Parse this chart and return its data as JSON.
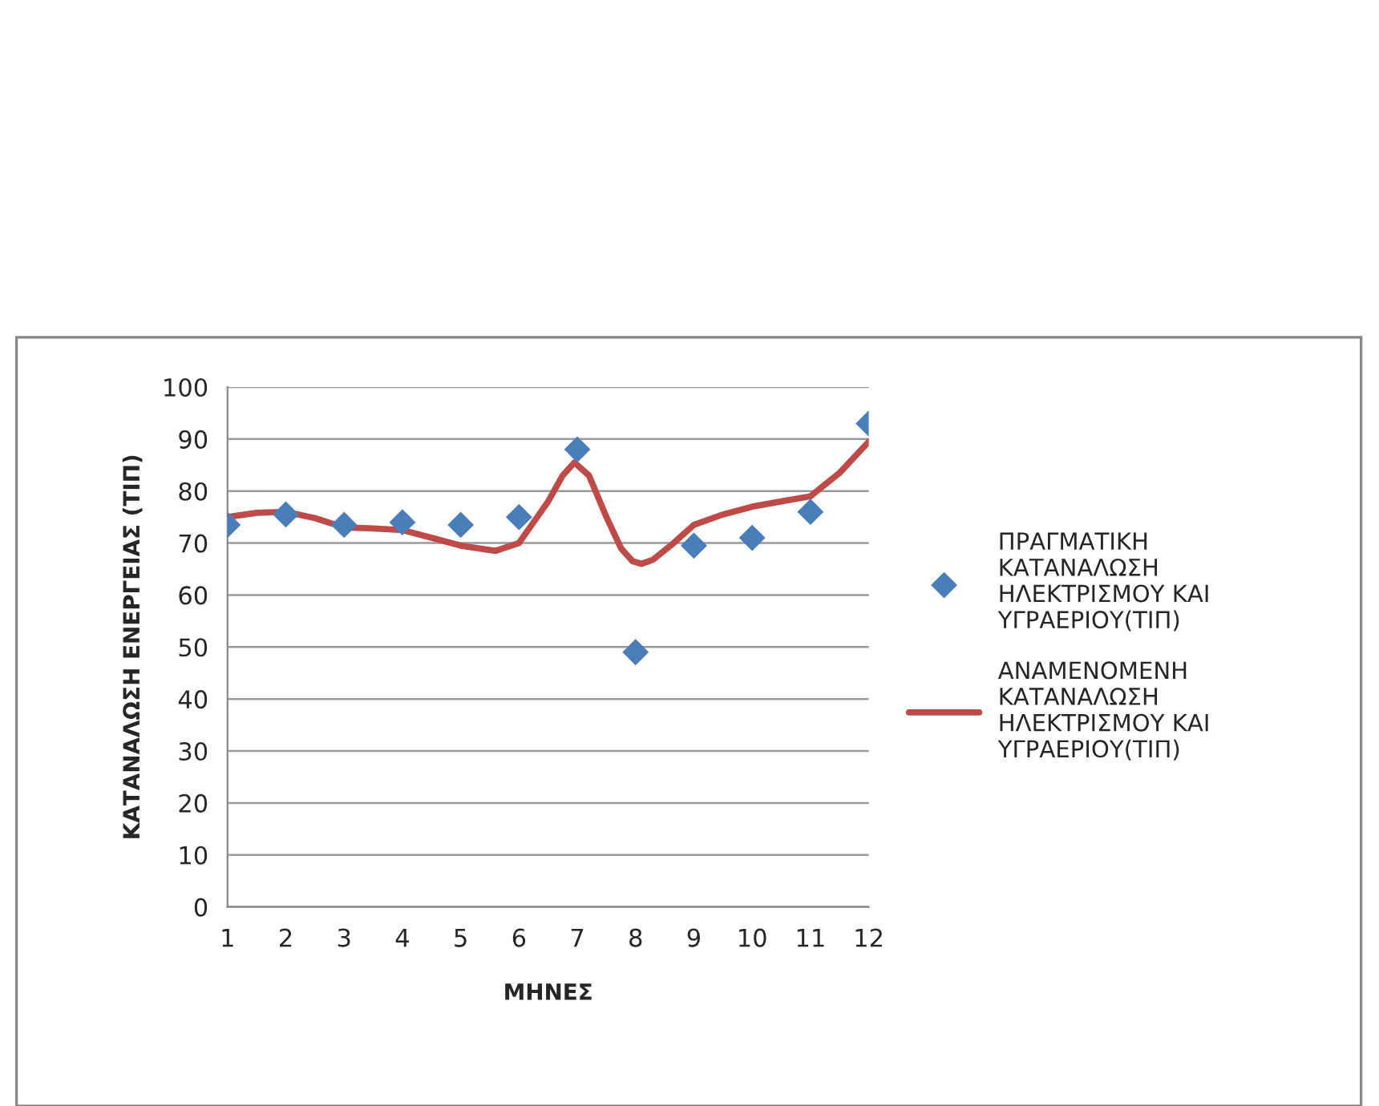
{
  "chart_data": {
    "type": "scatter",
    "xlabel": "ΜΗΝΕΣ",
    "ylabel": "ΚΑΤΑΝΑΛΩΣΗ ΕΝΕΡΓΕΙΑΣ (ΤΙΠ)",
    "x": [
      1,
      2,
      3,
      4,
      5,
      6,
      7,
      8,
      9,
      10,
      11,
      12
    ],
    "series": [
      {
        "name": "ΠΡΑΓΜΑΤΙΚΗ ΚΑΤΑΝΑΛΩΣΗ ΗΛΕΚΤΡΙΣΜΟΥ ΚΑΙ ΥΓΡΑΕΡΙΟΥ(ΤΙΠ)",
        "type": "scatter",
        "marker": "diamond",
        "color": "#4a7ebb",
        "values": [
          73.5,
          75.5,
          73.5,
          74,
          73.5,
          75,
          88,
          49,
          69.5,
          71,
          76,
          93
        ]
      },
      {
        "name": "ΑΝΑΜΕΝΟΜΕΝΗ ΚΑΤΑΝΑΛΩΣΗ ΗΛΕΚΤΡΙΣΜΟΥ ΚΑΙ ΥΓΡΑΕΡΙΟΥ(ΤΙΠ)",
        "type": "line",
        "marker": "none",
        "line_style": "solid",
        "color": "#be4b48",
        "x": [
          1,
          1.5,
          2,
          2.5,
          3,
          3.5,
          4,
          4.5,
          5,
          5.6,
          6,
          6.25,
          6.5,
          6.75,
          6.95,
          7.2,
          7.5,
          7.75,
          7.95,
          8.1,
          8.3,
          8.6,
          9,
          9.5,
          10,
          10.5,
          11,
          11.5,
          12
        ],
        "values": [
          75,
          75.8,
          76,
          74.8,
          73,
          72.8,
          72.5,
          71,
          69.5,
          68.5,
          70,
          74,
          78,
          83,
          85.5,
          83,
          75,
          69,
          66.5,
          66,
          66.8,
          69.5,
          73.5,
          75.5,
          77,
          78,
          79,
          83.5,
          89.5
        ]
      }
    ],
    "xlim": [
      1,
      12
    ],
    "xticks": [
      1,
      2,
      3,
      4,
      5,
      6,
      7,
      8,
      9,
      10,
      11,
      12
    ],
    "ylim": [
      0,
      100
    ],
    "yticks": [
      0,
      10,
      20,
      30,
      40,
      50,
      60,
      70,
      80,
      90,
      100
    ],
    "grid": "y",
    "legend": "right"
  }
}
